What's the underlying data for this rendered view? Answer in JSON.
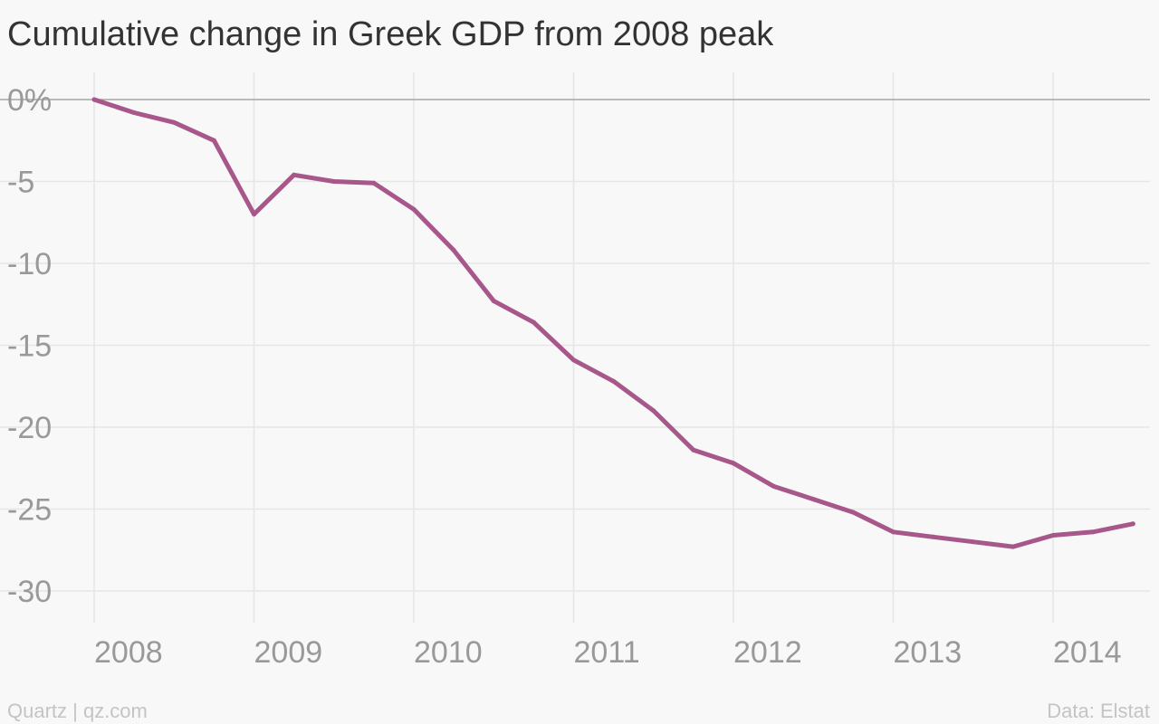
{
  "chart_data": {
    "type": "line",
    "title": "Cumulative change in Greek GDP from 2008 peak",
    "x_tick_labels": [
      "2008",
      "2009",
      "2010",
      "2011",
      "2012",
      "2013",
      "2014"
    ],
    "y_tick_labels": [
      "0%",
      "-5",
      "-10",
      "-15",
      "-20",
      "-25",
      "-30"
    ],
    "y_ticks": [
      0,
      -5,
      -10,
      -15,
      -20,
      -25,
      -30
    ],
    "xlim": [
      2008.0,
      2014.5
    ],
    "ylim": [
      -32,
      1
    ],
    "x": [
      2008.0,
      2008.25,
      2008.5,
      2008.75,
      2009.0,
      2009.25,
      2009.5,
      2009.75,
      2010.0,
      2010.25,
      2010.5,
      2010.75,
      2011.0,
      2011.25,
      2011.5,
      2011.75,
      2012.0,
      2012.25,
      2012.5,
      2012.75,
      2013.0,
      2013.25,
      2013.5,
      2013.75,
      2014.0,
      2014.25,
      2014.5
    ],
    "values": [
      0.0,
      -0.8,
      -1.4,
      -2.5,
      -7.0,
      -4.6,
      -5.0,
      -5.1,
      -6.7,
      -9.2,
      -12.3,
      -13.6,
      -15.9,
      -17.2,
      -19.0,
      -21.4,
      -22.2,
      -23.6,
      -24.4,
      -25.2,
      -26.4,
      -26.7,
      -27.0,
      -27.3,
      -26.6,
      -26.4,
      -25.9
    ],
    "color": "#a8578a",
    "zero_line_color": "#a5a5a5",
    "grid_color": "#e6e6e6",
    "grid": true,
    "legend": "none"
  },
  "footer": {
    "source_left": "Quartz | qz.com",
    "source_right": "Data: Elstat"
  }
}
